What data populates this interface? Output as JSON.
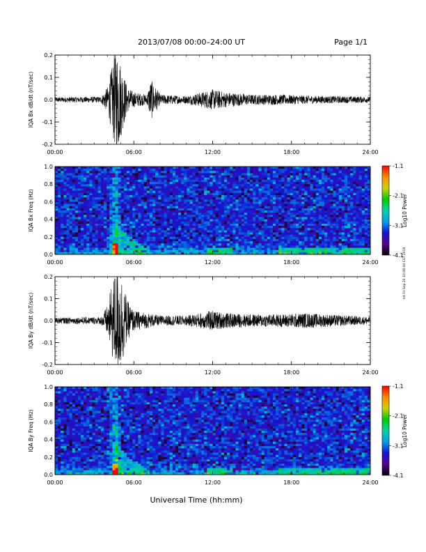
{
  "header": {
    "title": "2013/07/08  00:00–24:00 UT",
    "page": "Page 1/1"
  },
  "footer": {
    "xlabel": "Universal Time (hh:mm)"
  },
  "side_note": "mt Fri Sep 20 10:08:44 CST 2019",
  "colors": {
    "trace": "#000000",
    "spectrogram_background": "#2020c8"
  },
  "colorbar": {
    "label": "Log10 Power",
    "ticks": [
      "-1.1",
      "-2.1",
      "-3.1",
      "-4.1"
    ],
    "range": [
      -4.1,
      -1.1
    ],
    "colormap": [
      "#000000",
      "#5a0090",
      "#1414d2",
      "#00a0e6",
      "#00d2aa",
      "#00c800",
      "#c8d200",
      "#ff8c00",
      "#ff0000"
    ]
  },
  "chart_data": [
    {
      "type": "line",
      "title": "",
      "ylabel": "IQA Bx dB/dt (nT/sec)",
      "xlabel": "",
      "x_ticks": [
        "00:00",
        "06:00",
        "12:00",
        "18:00",
        "24:00"
      ],
      "xlim": [
        0,
        24
      ],
      "ylim": [
        -0.2,
        0.2
      ],
      "y_ticks": [
        "0.2",
        "0.1",
        "0.0",
        "-0.1",
        "-0.2"
      ],
      "grid": false,
      "envelope": {
        "hours": [
          0,
          3.5,
          4.0,
          4.3,
          4.6,
          4.8,
          5.0,
          5.5,
          6.0,
          7.0,
          7.3,
          8.0,
          10.0,
          12.0,
          13.0,
          15.0,
          17.0,
          20.0,
          24.0
        ],
        "amplitude": [
          0.01,
          0.012,
          0.05,
          0.12,
          0.2,
          0.2,
          0.15,
          0.05,
          0.03,
          0.02,
          0.08,
          0.02,
          0.015,
          0.04,
          0.03,
          0.02,
          0.02,
          0.015,
          0.012
        ]
      }
    },
    {
      "type": "heatmap",
      "title": "",
      "ylabel": "IQA Bx Freq (Hz)",
      "xlabel": "",
      "x_ticks": [
        "00:00",
        "06:00",
        "12:00",
        "18:00",
        "24:00"
      ],
      "xlim": [
        0,
        24
      ],
      "ylim": [
        0,
        1.0
      ],
      "y_ticks": [
        "1.0",
        "0.8",
        "0.6",
        "0.4",
        "0.2",
        "0.0"
      ],
      "features": {
        "storm_hour": 4.6,
        "low_freq_bands": [
          [
            11.5,
            13.5
          ],
          [
            17.0,
            24.0
          ]
        ]
      }
    },
    {
      "type": "line",
      "title": "",
      "ylabel": "IQA By dB/dt (nT/sec)",
      "xlabel": "",
      "x_ticks": [
        "00:00",
        "06:00",
        "12:00",
        "18:00",
        "24:00"
      ],
      "xlim": [
        0,
        24
      ],
      "ylim": [
        -0.2,
        0.2
      ],
      "y_ticks": [
        "0.2",
        "0.1",
        "0.0",
        "-0.1",
        "-0.2"
      ],
      "grid": false,
      "envelope": {
        "hours": [
          0,
          3.5,
          4.0,
          4.3,
          4.6,
          4.8,
          5.0,
          5.5,
          6.0,
          7.0,
          8.0,
          10.0,
          12.0,
          13.0,
          15.0,
          17.0,
          19.0,
          24.0
        ],
        "amplitude": [
          0.012,
          0.015,
          0.06,
          0.14,
          0.2,
          0.2,
          0.2,
          0.08,
          0.04,
          0.03,
          0.02,
          0.02,
          0.04,
          0.03,
          0.025,
          0.025,
          0.03,
          0.015
        ]
      }
    },
    {
      "type": "heatmap",
      "title": "",
      "ylabel": "IQA By Freq (Hz)",
      "xlabel": "",
      "x_ticks": [
        "00:00",
        "06:00",
        "12:00",
        "18:00",
        "24:00"
      ],
      "xlim": [
        0,
        24
      ],
      "ylim": [
        0,
        1.0
      ],
      "y_ticks": [
        "1.0",
        "0.8",
        "0.6",
        "0.4",
        "0.2",
        "0.0"
      ],
      "features": {
        "storm_hour": 4.6,
        "low_freq_bands": [
          [
            11.5,
            13.5
          ],
          [
            17.0,
            24.0
          ]
        ]
      }
    }
  ]
}
